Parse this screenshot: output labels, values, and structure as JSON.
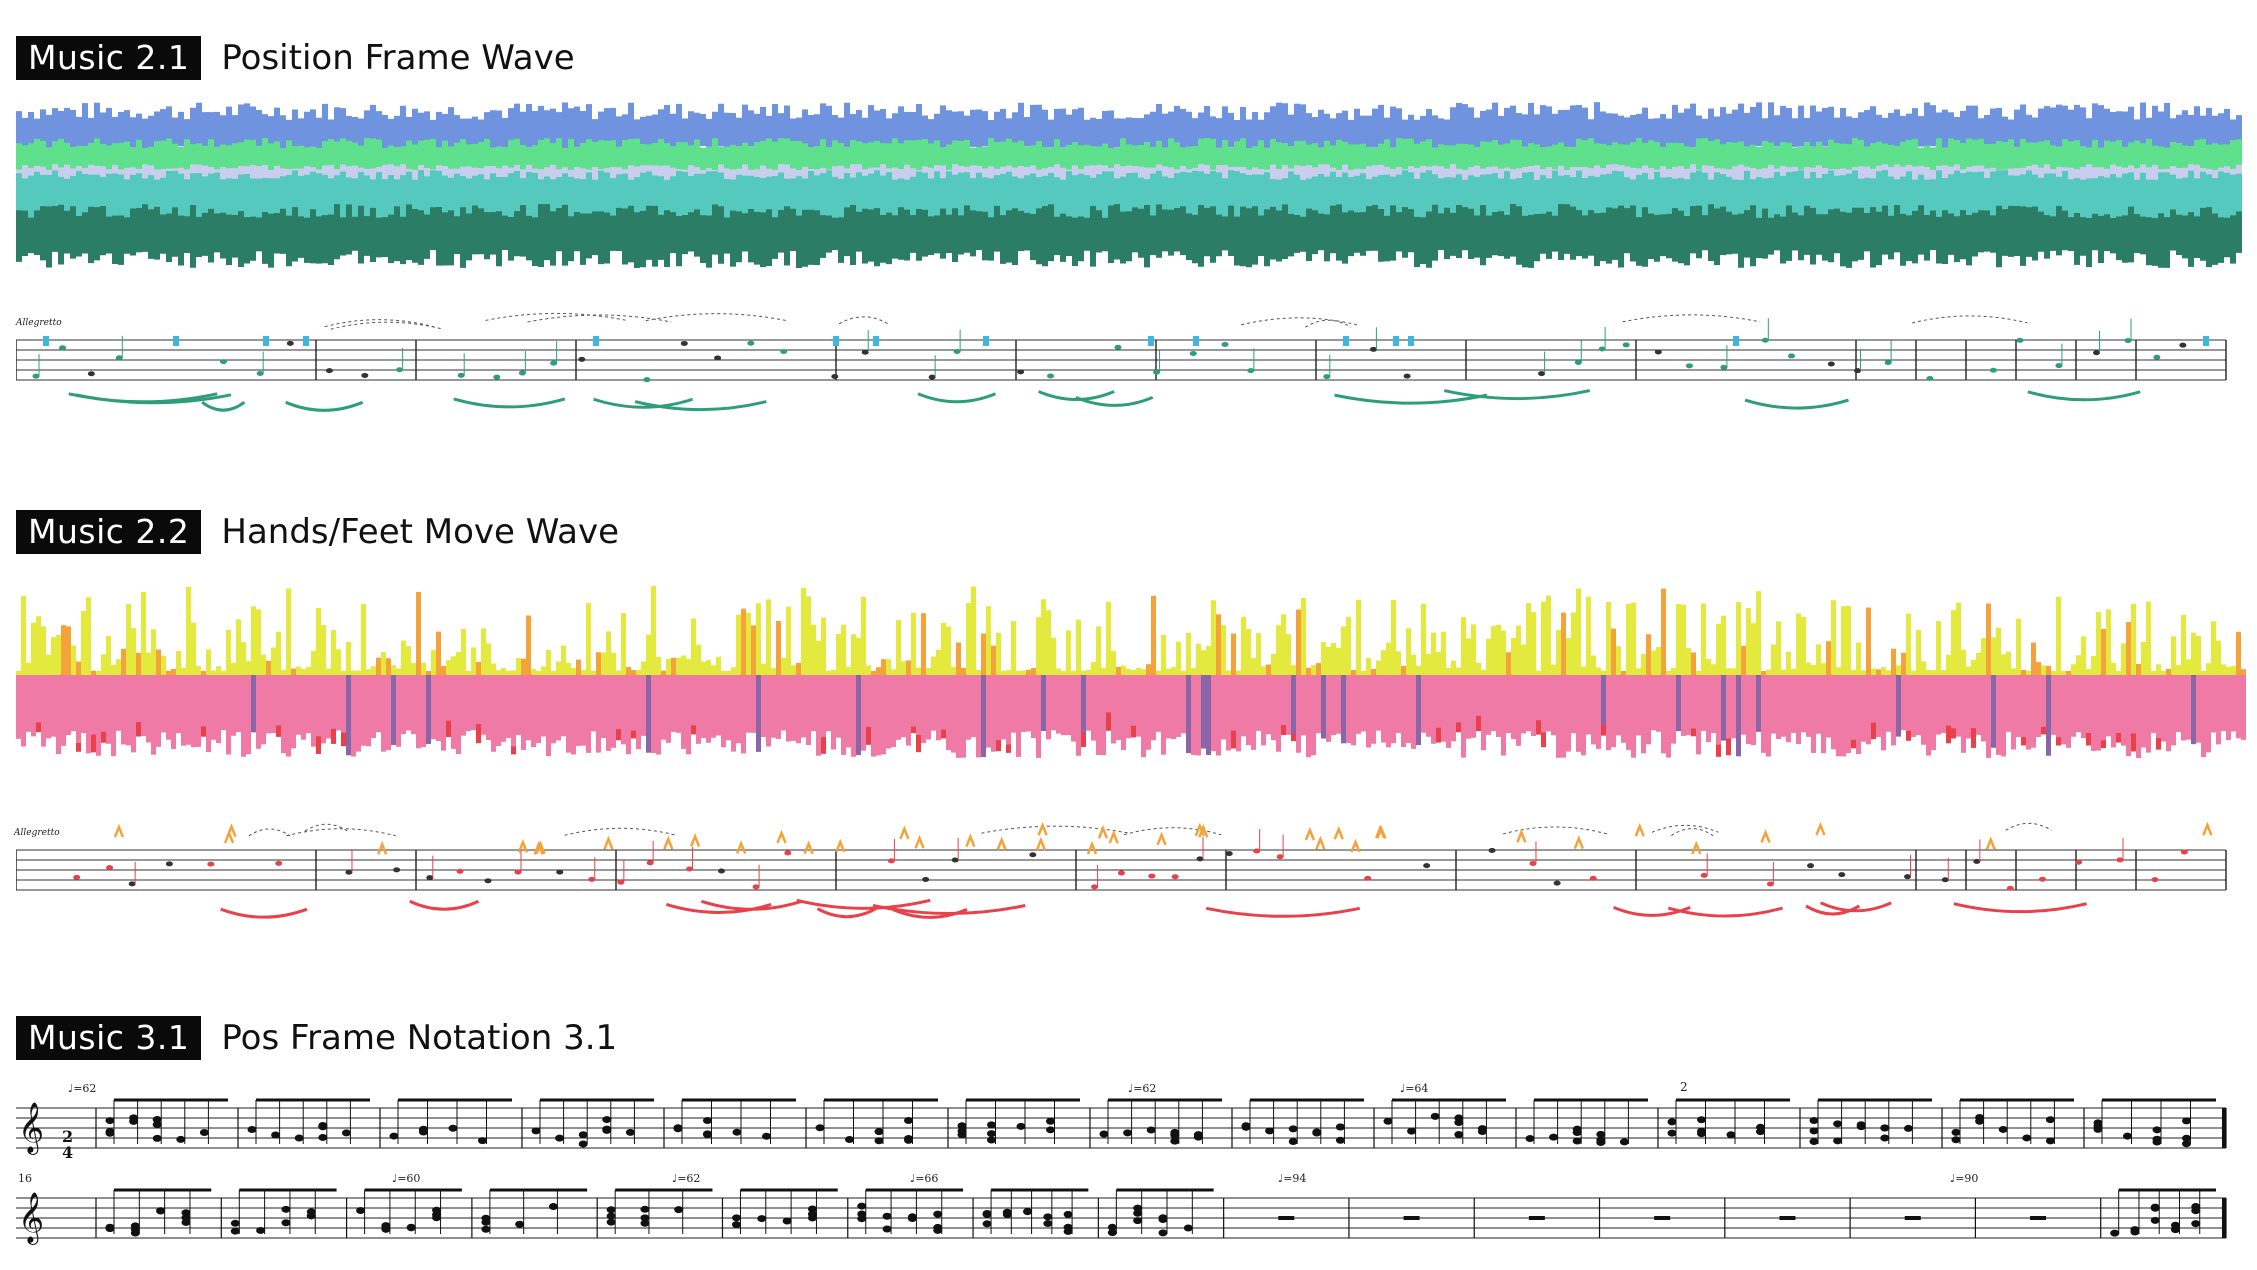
{
  "sections": [
    {
      "tag": "Music 2.1",
      "title": "Position Frame Wave"
    },
    {
      "tag": "Music 2.2",
      "title": "Hands/Feet Move Wave"
    },
    {
      "tag": "Music 3.1",
      "title": "Pos Frame Notation 3.1"
    }
  ],
  "score_marks": {
    "tempo_marking": "Allegretto",
    "tempo_62a": "♩=62",
    "tempo_62b": "♩=62",
    "tempo_64": "♩=64",
    "tempo_60": "♩=60",
    "tempo_62c": "♩=62",
    "tempo_66": "♩=66",
    "tempo_94": "♩=94",
    "tempo_90": "♩=90",
    "rehearsal_2": "2",
    "measure_16": "16",
    "time_sig_top": "2",
    "time_sig_bottom": "4"
  },
  "colors": {
    "blue": "#6f93de",
    "green": "#5fe08d",
    "lavender": "#c9cdee",
    "teal": "#55c9bd",
    "dark_teal": "#2b7d66",
    "yellow": "#e3ea3d",
    "orange": "#f3a33a",
    "pink": "#f07aa6",
    "purple": "#8a66a8",
    "red": "#e8414a"
  }
}
